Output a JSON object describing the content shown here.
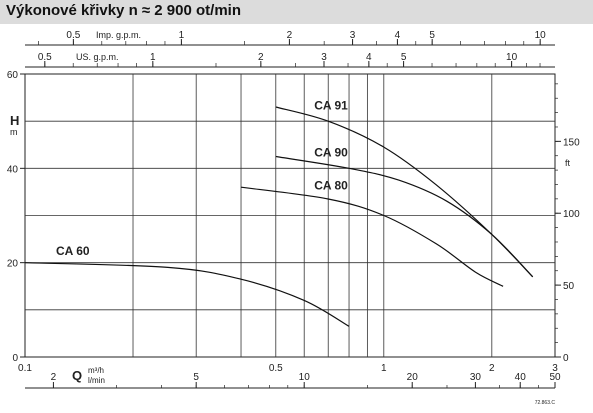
{
  "header": {
    "title": "Výkonové křivky n ≈ 2 900 ot/min"
  },
  "chart_data": {
    "type": "line",
    "x_scale": "log",
    "xlim": [
      0.1,
      3
    ],
    "ylim": [
      0,
      60
    ],
    "grid": true,
    "y_axis": {
      "label": "H",
      "unit": "m",
      "ticks": [
        0,
        20,
        40,
        60
      ]
    },
    "y2_axis": {
      "unit": "ft",
      "ticks": [
        0,
        50,
        100,
        150
      ]
    },
    "x_axis": {
      "label": "Q",
      "unit": "m³/h",
      "ticks": [
        {
          "value": 0.1,
          "label": "0.1"
        },
        {
          "value": 0.5,
          "label": "0.5"
        },
        {
          "value": 1,
          "label": "1"
        },
        {
          "value": 2,
          "label": "2"
        },
        {
          "value": 3,
          "label": "3"
        }
      ]
    },
    "x_axis_lmin": {
      "unit": "l/min",
      "ticks": [
        {
          "value": 2,
          "label": "2"
        },
        {
          "value": 5,
          "label": "5"
        },
        {
          "value": 10,
          "label": "10"
        },
        {
          "value": 20,
          "label": "20"
        },
        {
          "value": 30,
          "label": "30"
        },
        {
          "value": 40,
          "label": "40"
        },
        {
          "value": 50,
          "label": "50"
        }
      ]
    },
    "x_axis_imp": {
      "unit": "Imp. g.p.m.",
      "ticks": [
        {
          "value": 0.5,
          "label": "0.5"
        },
        {
          "value": 1,
          "label": "1"
        },
        {
          "value": 2,
          "label": "2"
        },
        {
          "value": 3,
          "label": "3"
        },
        {
          "value": 4,
          "label": "4"
        },
        {
          "value": 5,
          "label": "5"
        },
        {
          "value": 10,
          "label": "10"
        }
      ]
    },
    "x_axis_us": {
      "unit": "US. g.p.m.",
      "ticks": [
        {
          "value": 0.5,
          "label": "0.5"
        },
        {
          "value": 1,
          "label": "1"
        },
        {
          "value": 2,
          "label": "2"
        },
        {
          "value": 3,
          "label": "3"
        },
        {
          "value": 4,
          "label": "4"
        },
        {
          "value": 5,
          "label": "5"
        },
        {
          "value": 10,
          "label": "10"
        }
      ]
    },
    "series": [
      {
        "name": "CA 91",
        "label_at": [
          0.64,
          52.5
        ],
        "points": [
          [
            0.5,
            53
          ],
          [
            0.7,
            50
          ],
          [
            1.0,
            44.5
          ],
          [
            1.4,
            36.5
          ],
          [
            2.0,
            26
          ],
          [
            2.6,
            17
          ]
        ]
      },
      {
        "name": "CA 90",
        "label_at": [
          0.64,
          42.5
        ],
        "points": [
          [
            0.5,
            42.5
          ],
          [
            0.8,
            40
          ],
          [
            1.1,
            37.5
          ],
          [
            1.5,
            33
          ],
          [
            2.0,
            26
          ],
          [
            2.6,
            17
          ]
        ]
      },
      {
        "name": "CA 80",
        "label_at": [
          0.64,
          35.5
        ],
        "points": [
          [
            0.4,
            36
          ],
          [
            0.7,
            33.5
          ],
          [
            1.0,
            30
          ],
          [
            1.4,
            24
          ],
          [
            1.8,
            18
          ],
          [
            2.15,
            15
          ]
        ]
      },
      {
        "name": "CA 60",
        "label_at": [
          0.122,
          21.6
        ],
        "points": [
          [
            0.1,
            20
          ],
          [
            0.25,
            19
          ],
          [
            0.4,
            16.5
          ],
          [
            0.6,
            12
          ],
          [
            0.8,
            6.5
          ]
        ]
      }
    ],
    "footnote": "72.863.C"
  }
}
